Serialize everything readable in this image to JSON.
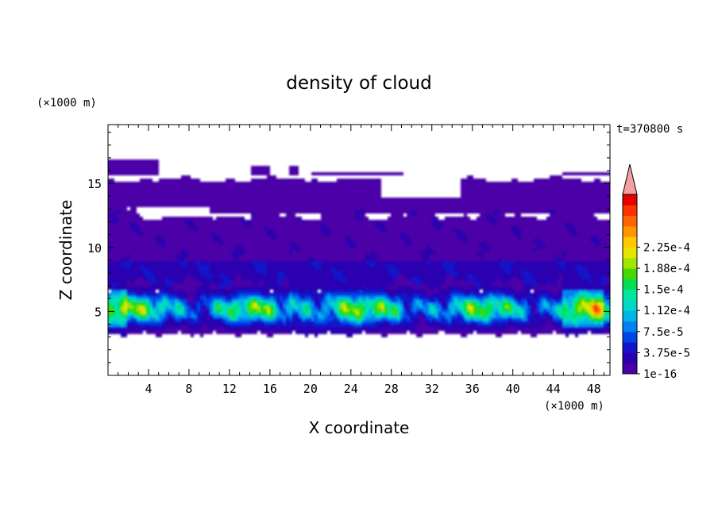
{
  "chart_data": {
    "type": "heatmap",
    "title": "density of cloud",
    "time_label": "t=370800 s",
    "xlabel": "X coordinate",
    "ylabel": "Z coordinate",
    "x_unit": "(×1000 m)",
    "y_unit": "(×1000 m)",
    "xlim": [
      0,
      49.6
    ],
    "ylim": [
      0,
      19.6
    ],
    "x_ticks": [
      4,
      8,
      12,
      16,
      20,
      24,
      28,
      32,
      36,
      40,
      44,
      48
    ],
    "y_ticks": [
      5,
      10,
      15
    ],
    "colorbar": {
      "levels": [
        "1e-16",
        "3.75e-5",
        "7.5e-5",
        "1.12e-4",
        "1.5e-4",
        "1.88e-4",
        "2.25e-4"
      ],
      "level_values": [
        1e-16,
        3.75e-05,
        7.5e-05,
        0.000112,
        0.00015,
        0.000188,
        0.000225
      ],
      "band_colors": [
        "#4b00a8",
        "#2a00b0",
        "#1414c8",
        "#0046e6",
        "#0082f0",
        "#00b4e8",
        "#00d9c8",
        "#00e6a0",
        "#00e050",
        "#46d800",
        "#a0e600",
        "#e6e600",
        "#ffc800",
        "#ff9600",
        "#ff6400",
        "#ff3200",
        "#e60000"
      ],
      "extend_color": "#f4a0a0"
    }
  }
}
